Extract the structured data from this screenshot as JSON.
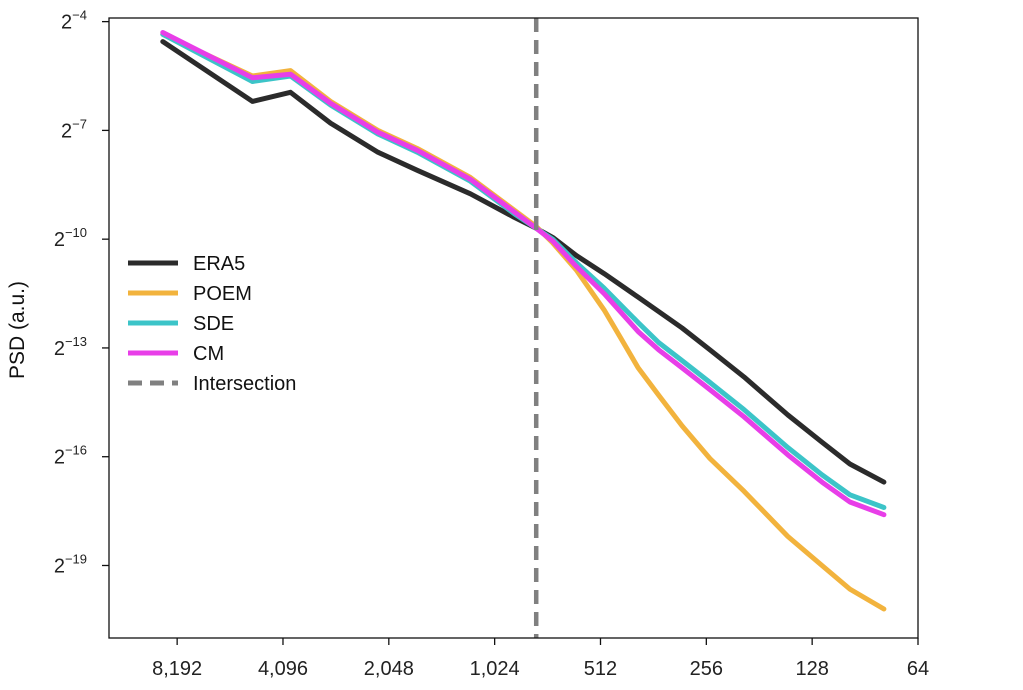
{
  "chart_data": {
    "type": "line",
    "title": "",
    "ylabel": "PSD (a.u.)",
    "xlabel": "",
    "x_scale": "log2-reversed",
    "y_scale": "log2",
    "xlim": [
      12800,
      64
    ],
    "ylim_log2": [
      -21,
      -3.9
    ],
    "x_ticks": [
      {
        "value": 8192,
        "label": "8,192"
      },
      {
        "value": 4096,
        "label": "4,096"
      },
      {
        "value": 2048,
        "label": "2,048"
      },
      {
        "value": 1024,
        "label": "1,024"
      },
      {
        "value": 512,
        "label": "512"
      },
      {
        "value": 256,
        "label": "256"
      },
      {
        "value": 128,
        "label": "128"
      },
      {
        "value": 64,
        "label": "64"
      }
    ],
    "y_ticks": [
      {
        "exp": -4,
        "base": "2",
        "sup": "−4"
      },
      {
        "exp": -7,
        "base": "2",
        "sup": "−7"
      },
      {
        "exp": -10,
        "base": "2",
        "sup": "−10"
      },
      {
        "exp": -13,
        "base": "2",
        "sup": "−13"
      },
      {
        "exp": -16,
        "base": "2",
        "sup": "−16"
      },
      {
        "exp": -19,
        "base": "2",
        "sup": "−19"
      }
    ],
    "intersection": {
      "x": 780,
      "label": "Intersection",
      "color": "#808080"
    },
    "series": [
      {
        "name": "ERA5",
        "color": "#2b2b2b",
        "x": [
          9000,
          5000,
          3900,
          3000,
          2200,
          1700,
          1200,
          900,
          780,
          700,
          600,
          500,
          400,
          300,
          250,
          200,
          150,
          120,
          100,
          80
        ],
        "log2_y": [
          -4.55,
          -6.2,
          -5.95,
          -6.8,
          -7.6,
          -8.1,
          -8.75,
          -9.4,
          -9.7,
          -9.95,
          -10.45,
          -10.95,
          -11.6,
          -12.45,
          -13.05,
          -13.8,
          -14.85,
          -15.6,
          -16.2,
          -16.7
        ]
      },
      {
        "name": "POEM",
        "color": "#f2b33d",
        "x": [
          9000,
          5000,
          3900,
          3000,
          2200,
          1700,
          1200,
          900,
          780,
          700,
          600,
          500,
          450,
          400,
          350,
          300,
          250,
          200,
          150,
          120,
          100,
          80
        ],
        "log2_y": [
          -4.35,
          -5.5,
          -5.35,
          -6.2,
          -7.0,
          -7.5,
          -8.3,
          -9.2,
          -9.65,
          -10.1,
          -10.85,
          -11.95,
          -12.7,
          -13.55,
          -14.3,
          -15.15,
          -16.05,
          -16.95,
          -18.2,
          -19.0,
          -19.65,
          -20.2
        ]
      },
      {
        "name": "SDE",
        "color": "#3cc4c8",
        "x": [
          9000,
          5000,
          3900,
          3000,
          2200,
          1700,
          1200,
          900,
          780,
          700,
          600,
          500,
          400,
          350,
          300,
          250,
          200,
          150,
          120,
          100,
          80
        ],
        "log2_y": [
          -4.35,
          -5.65,
          -5.5,
          -6.3,
          -7.1,
          -7.6,
          -8.4,
          -9.3,
          -9.7,
          -10.0,
          -10.65,
          -11.35,
          -12.3,
          -12.85,
          -13.35,
          -13.95,
          -14.7,
          -15.75,
          -16.5,
          -17.05,
          -17.4
        ]
      },
      {
        "name": "CM",
        "color": "#e83ee8",
        "x": [
          9000,
          5000,
          3900,
          3000,
          2200,
          1700,
          1200,
          900,
          780,
          700,
          600,
          500,
          400,
          350,
          300,
          250,
          200,
          150,
          120,
          100,
          80
        ],
        "log2_y": [
          -4.3,
          -5.55,
          -5.45,
          -6.25,
          -7.05,
          -7.55,
          -8.35,
          -9.25,
          -9.7,
          -10.05,
          -10.75,
          -11.5,
          -12.55,
          -13.05,
          -13.55,
          -14.15,
          -14.9,
          -15.95,
          -16.7,
          -17.25,
          -17.6
        ]
      }
    ],
    "legend_position": "center-left"
  }
}
